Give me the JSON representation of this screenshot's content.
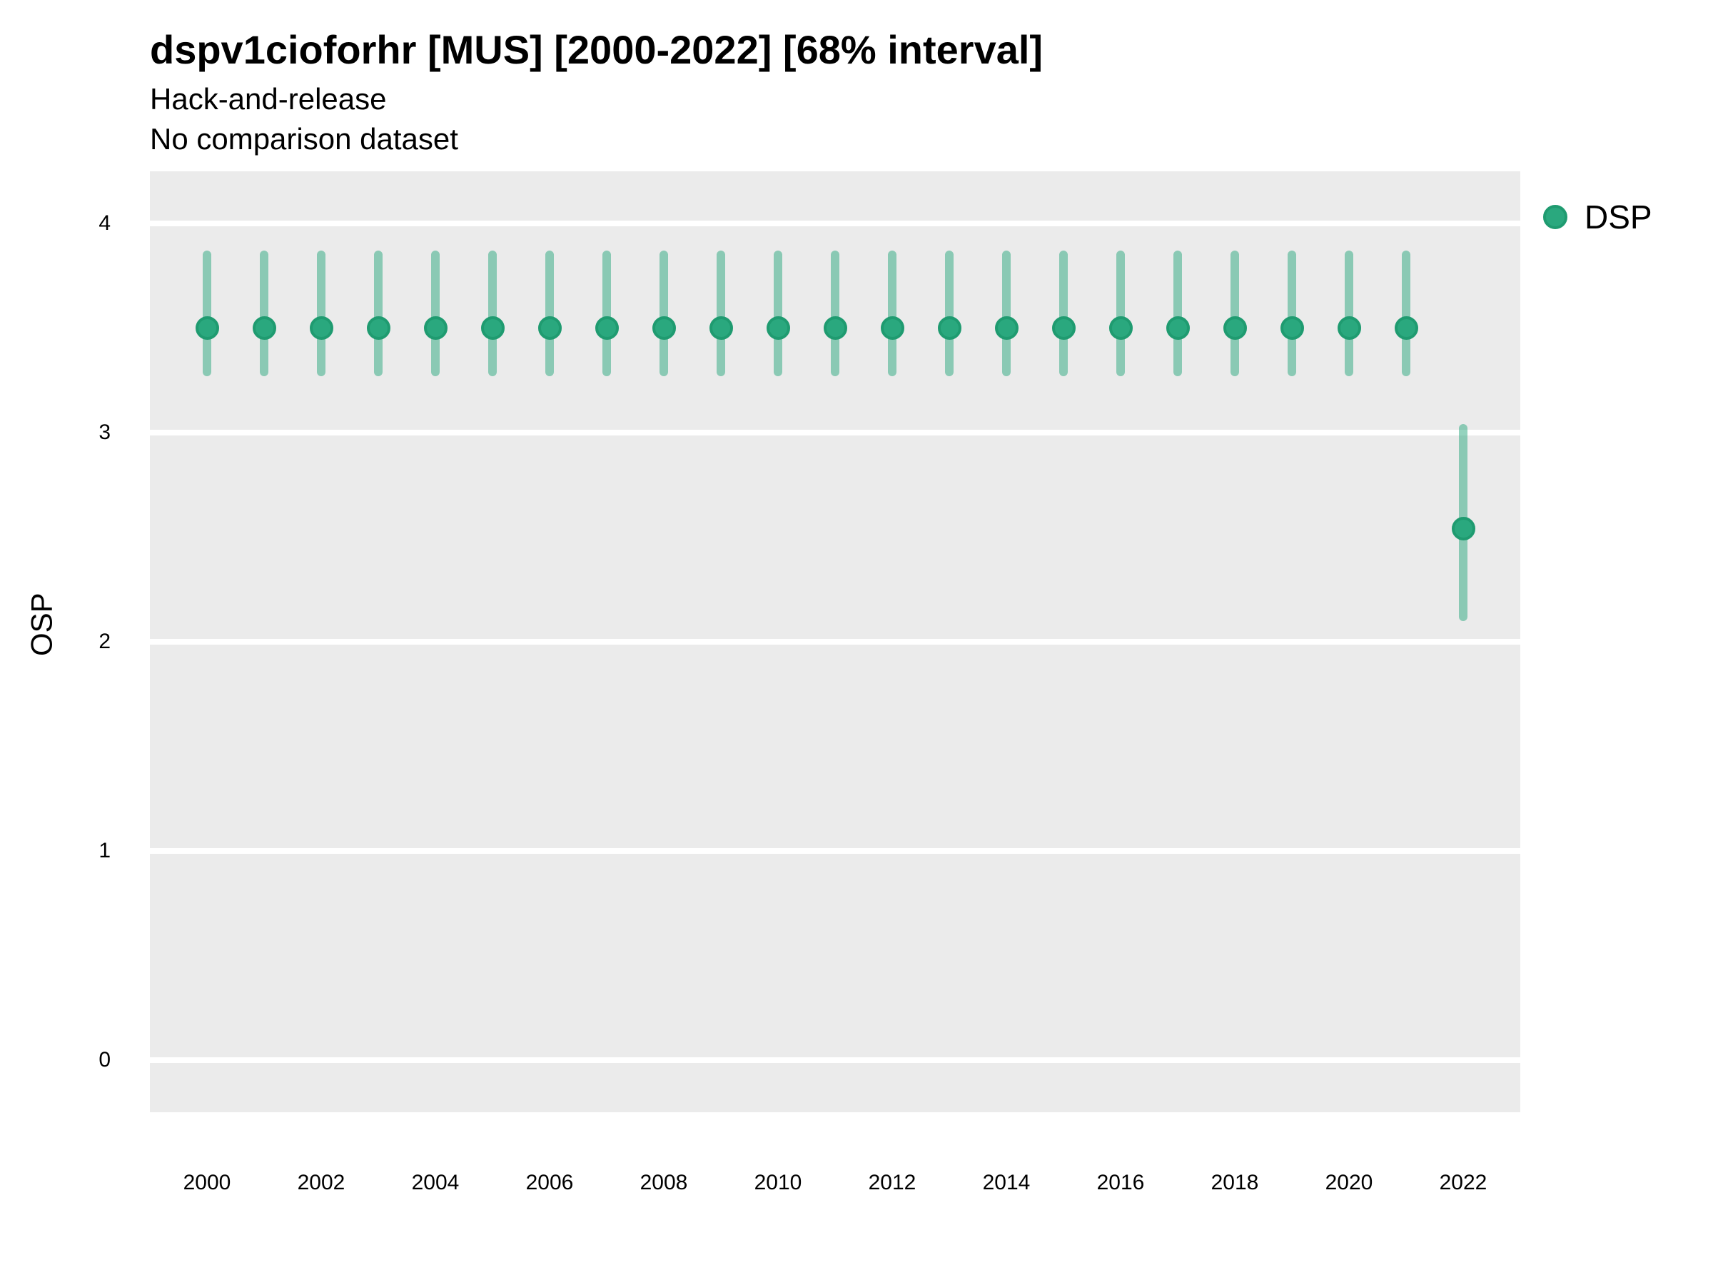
{
  "header": {
    "title": "dspv1cioforhr [MUS] [2000-2022] [68% interval]",
    "subtitle_line1": "Hack-and-release",
    "subtitle_line2": "No comparison dataset"
  },
  "legend": {
    "entries": [
      {
        "label": "DSP",
        "color": "#2AA87E"
      }
    ]
  },
  "colors": {
    "panel_bg": "#EBEBEB",
    "gridline": "#FFFFFF",
    "point_fill": "#2AA87E",
    "point_border": "#1F9B70",
    "range_bar": "rgba(42,168,126,0.5)",
    "text": "#000000"
  },
  "chart_data": {
    "type": "scatter",
    "subtype": "pointrange",
    "title": "dspv1cioforhr [MUS] [2000-2022] [68% interval]",
    "subtitle": "Hack-and-release",
    "annotation": "No comparison dataset",
    "interval": "68% interval",
    "xlabel": "",
    "ylabel": "OSP",
    "xlim": [
      1999,
      2023
    ],
    "ylim": [
      -0.25,
      4.25
    ],
    "x_ticks": [
      2000,
      2002,
      2004,
      2006,
      2008,
      2010,
      2012,
      2014,
      2016,
      2018,
      2020,
      2022
    ],
    "y_ticks": [
      0,
      1,
      2,
      3,
      4
    ],
    "grid": "horizontal-major-only",
    "legend_position": "right-top",
    "series": [
      {
        "name": "DSP",
        "color": "#2AA87E",
        "points": [
          {
            "x": 2000,
            "mid": 3.5,
            "lo": 3.27,
            "hi": 3.87
          },
          {
            "x": 2001,
            "mid": 3.5,
            "lo": 3.27,
            "hi": 3.87
          },
          {
            "x": 2002,
            "mid": 3.5,
            "lo": 3.27,
            "hi": 3.87
          },
          {
            "x": 2003,
            "mid": 3.5,
            "lo": 3.27,
            "hi": 3.87
          },
          {
            "x": 2004,
            "mid": 3.5,
            "lo": 3.27,
            "hi": 3.87
          },
          {
            "x": 2005,
            "mid": 3.5,
            "lo": 3.27,
            "hi": 3.87
          },
          {
            "x": 2006,
            "mid": 3.5,
            "lo": 3.27,
            "hi": 3.87
          },
          {
            "x": 2007,
            "mid": 3.5,
            "lo": 3.27,
            "hi": 3.87
          },
          {
            "x": 2008,
            "mid": 3.5,
            "lo": 3.27,
            "hi": 3.87
          },
          {
            "x": 2009,
            "mid": 3.5,
            "lo": 3.27,
            "hi": 3.87
          },
          {
            "x": 2010,
            "mid": 3.5,
            "lo": 3.27,
            "hi": 3.87
          },
          {
            "x": 2011,
            "mid": 3.5,
            "lo": 3.27,
            "hi": 3.87
          },
          {
            "x": 2012,
            "mid": 3.5,
            "lo": 3.27,
            "hi": 3.87
          },
          {
            "x": 2013,
            "mid": 3.5,
            "lo": 3.27,
            "hi": 3.87
          },
          {
            "x": 2014,
            "mid": 3.5,
            "lo": 3.27,
            "hi": 3.87
          },
          {
            "x": 2015,
            "mid": 3.5,
            "lo": 3.27,
            "hi": 3.87
          },
          {
            "x": 2016,
            "mid": 3.5,
            "lo": 3.27,
            "hi": 3.87
          },
          {
            "x": 2017,
            "mid": 3.5,
            "lo": 3.27,
            "hi": 3.87
          },
          {
            "x": 2018,
            "mid": 3.5,
            "lo": 3.27,
            "hi": 3.87
          },
          {
            "x": 2019,
            "mid": 3.5,
            "lo": 3.27,
            "hi": 3.87
          },
          {
            "x": 2020,
            "mid": 3.5,
            "lo": 3.27,
            "hi": 3.87
          },
          {
            "x": 2021,
            "mid": 3.5,
            "lo": 3.27,
            "hi": 3.87
          },
          {
            "x": 2022,
            "mid": 2.54,
            "lo": 2.1,
            "hi": 3.04
          }
        ]
      }
    ]
  }
}
